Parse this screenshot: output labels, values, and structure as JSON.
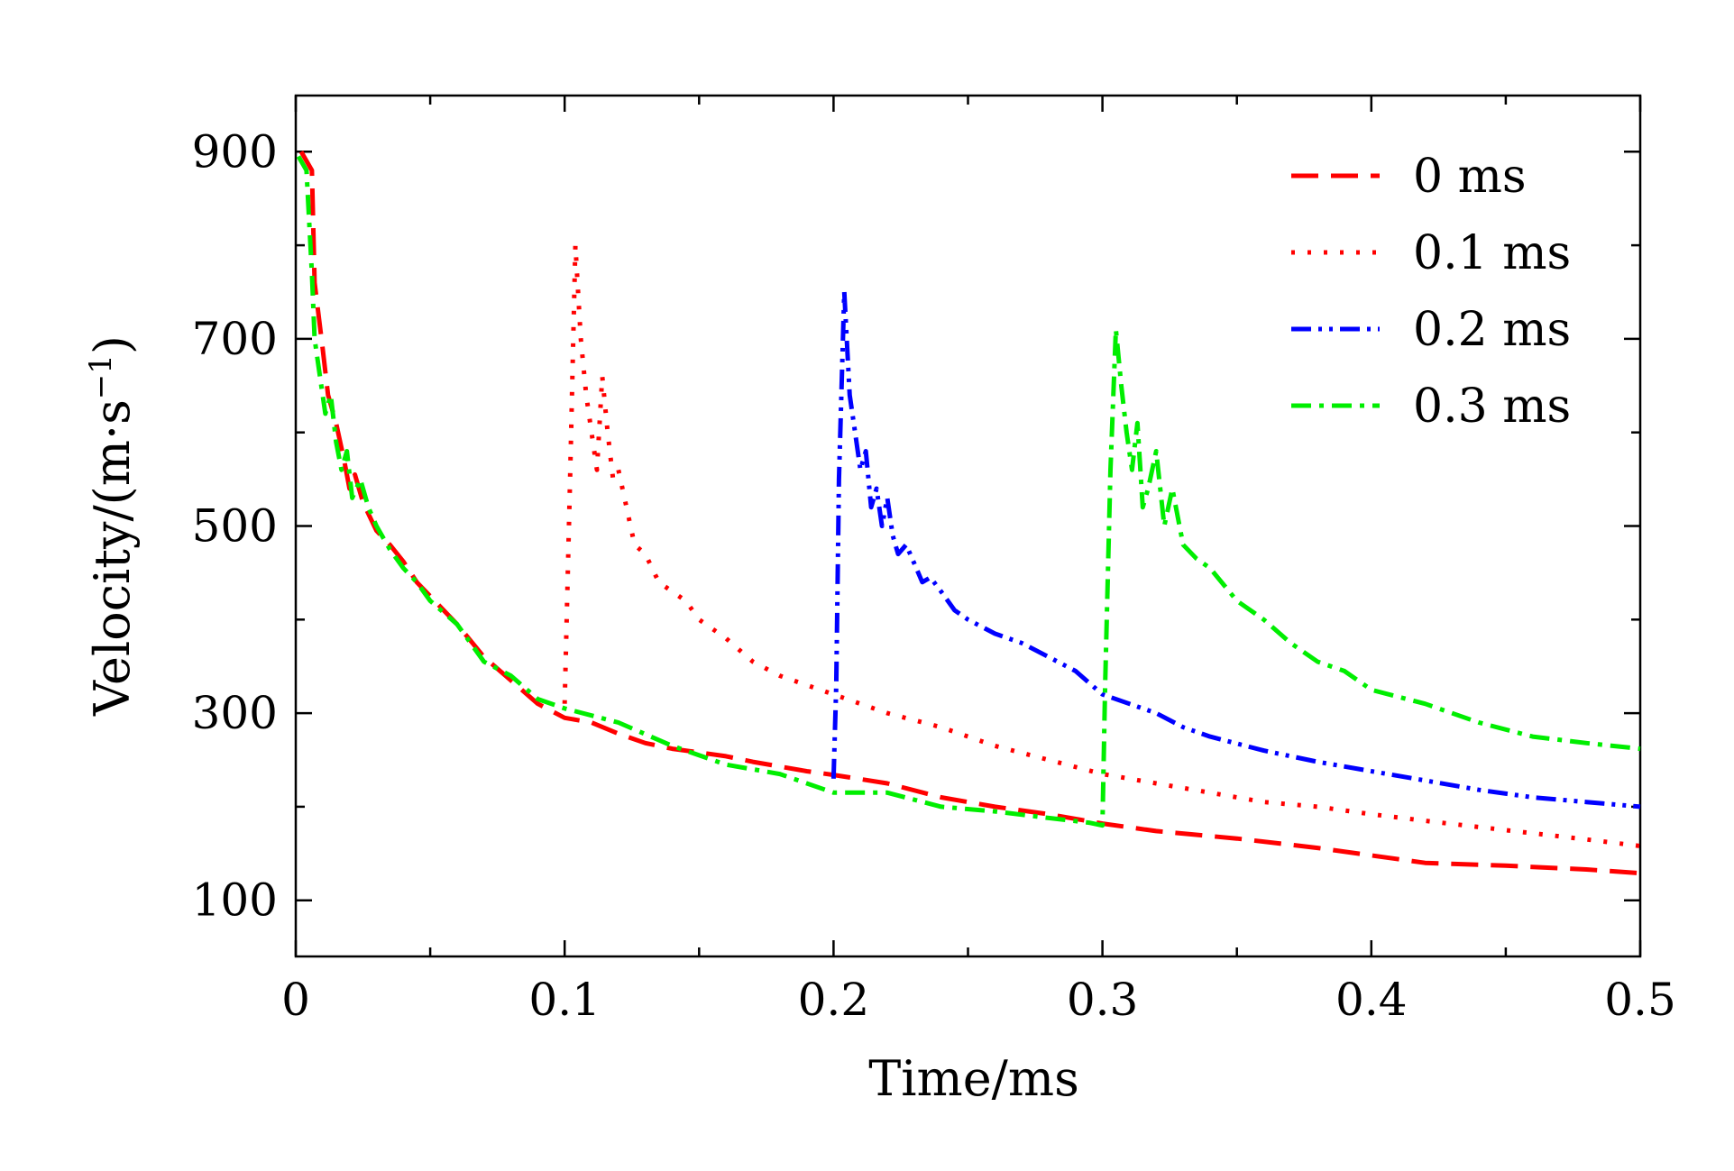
{
  "chart_data": {
    "type": "line",
    "xlabel": "Time/ms",
    "ylabel": "Velocity/(m·s",
    "ylabel_sup": "−1",
    "ylabel_close": ")",
    "xlim": [
      0,
      0.5
    ],
    "ylim": [
      40,
      960
    ],
    "xticks": [
      0,
      0.1,
      0.2,
      0.3,
      0.4,
      0.5
    ],
    "xtick_labels": [
      "0",
      "0.1",
      "0.2",
      "0.3",
      "0.4",
      "0.5"
    ],
    "yticks": [
      100,
      300,
      500,
      700,
      900
    ],
    "ytick_labels": [
      "100",
      "300",
      "500",
      "700",
      "900"
    ],
    "grid": false,
    "legend_position": "top-right",
    "series": [
      {
        "name": "0 ms",
        "color": "#ff0000",
        "dash": "dashed",
        "x": [
          0.002,
          0.006,
          0.007,
          0.01,
          0.012,
          0.015,
          0.018,
          0.02,
          0.022,
          0.025,
          0.03,
          0.035,
          0.04,
          0.045,
          0.05,
          0.06,
          0.07,
          0.08,
          0.09,
          0.1,
          0.11,
          0.12,
          0.13,
          0.14,
          0.15,
          0.16,
          0.17,
          0.18,
          0.19,
          0.2,
          0.22,
          0.24,
          0.26,
          0.28,
          0.3,
          0.32,
          0.35,
          0.38,
          0.4,
          0.42,
          0.45,
          0.48,
          0.5
        ],
        "y": [
          900,
          880,
          760,
          690,
          640,
          610,
          570,
          540,
          555,
          525,
          495,
          480,
          462,
          440,
          425,
          395,
          360,
          335,
          310,
          295,
          290,
          278,
          268,
          262,
          258,
          254,
          248,
          243,
          238,
          234,
          225,
          210,
          200,
          192,
          182,
          174,
          166,
          156,
          148,
          140,
          137,
          133,
          129
        ]
      },
      {
        "name": "0.1 ms",
        "color": "#ff0000",
        "dash": "dotted",
        "x": [
          0.1,
          0.102,
          0.104,
          0.106,
          0.108,
          0.11,
          0.112,
          0.114,
          0.116,
          0.118,
          0.12,
          0.123,
          0.126,
          0.13,
          0.135,
          0.14,
          0.145,
          0.15,
          0.16,
          0.17,
          0.18,
          0.19,
          0.2,
          0.21,
          0.22,
          0.24,
          0.26,
          0.28,
          0.3,
          0.32,
          0.34,
          0.36,
          0.38,
          0.4,
          0.42,
          0.45,
          0.48,
          0.5
        ],
        "y": [
          310,
          550,
          800,
          700,
          640,
          600,
          560,
          660,
          600,
          550,
          560,
          520,
          480,
          470,
          440,
          430,
          420,
          400,
          380,
          355,
          340,
          330,
          320,
          310,
          300,
          285,
          265,
          250,
          235,
          225,
          215,
          205,
          200,
          192,
          185,
          175,
          165,
          158
        ]
      },
      {
        "name": "0.2 ms",
        "color": "#0000ff",
        "dash": "dashdotdot",
        "x": [
          0.2,
          0.201,
          0.202,
          0.204,
          0.206,
          0.208,
          0.21,
          0.212,
          0.214,
          0.216,
          0.218,
          0.22,
          0.222,
          0.224,
          0.227,
          0.23,
          0.233,
          0.236,
          0.24,
          0.245,
          0.25,
          0.26,
          0.27,
          0.28,
          0.29,
          0.3,
          0.31,
          0.32,
          0.33,
          0.34,
          0.36,
          0.38,
          0.4,
          0.42,
          0.44,
          0.46,
          0.48,
          0.5
        ],
        "y": [
          230,
          330,
          550,
          750,
          640,
          600,
          560,
          580,
          520,
          540,
          500,
          530,
          490,
          470,
          480,
          460,
          440,
          445,
          430,
          410,
          400,
          385,
          375,
          360,
          345,
          320,
          310,
          300,
          285,
          275,
          260,
          248,
          238,
          228,
          218,
          210,
          205,
          200
        ]
      },
      {
        "name": "0.3 ms",
        "color": "#00ee00",
        "dash": "dashdot",
        "x": [
          0.001,
          0.004,
          0.006,
          0.007,
          0.009,
          0.011,
          0.013,
          0.015,
          0.017,
          0.019,
          0.021,
          0.024,
          0.027,
          0.03,
          0.035,
          0.04,
          0.045,
          0.05,
          0.06,
          0.07,
          0.08,
          0.09,
          0.1,
          0.12,
          0.14,
          0.16,
          0.18,
          0.2,
          0.22,
          0.24,
          0.26,
          0.28,
          0.295,
          0.3,
          0.301,
          0.303,
          0.305,
          0.307,
          0.309,
          0.311,
          0.313,
          0.315,
          0.317,
          0.32,
          0.323,
          0.326,
          0.33,
          0.335,
          0.34,
          0.35,
          0.36,
          0.37,
          0.38,
          0.39,
          0.4,
          0.42,
          0.44,
          0.46,
          0.48,
          0.5
        ],
        "y": [
          895,
          880,
          770,
          700,
          660,
          620,
          640,
          590,
          560,
          580,
          530,
          550,
          520,
          500,
          475,
          455,
          440,
          420,
          395,
          355,
          340,
          315,
          305,
          290,
          265,
          245,
          235,
          215,
          215,
          200,
          195,
          188,
          183,
          180,
          330,
          560,
          710,
          650,
          600,
          560,
          610,
          520,
          540,
          580,
          500,
          540,
          480,
          465,
          455,
          420,
          400,
          375,
          355,
          345,
          325,
          310,
          290,
          275,
          268,
          262
        ]
      }
    ]
  }
}
